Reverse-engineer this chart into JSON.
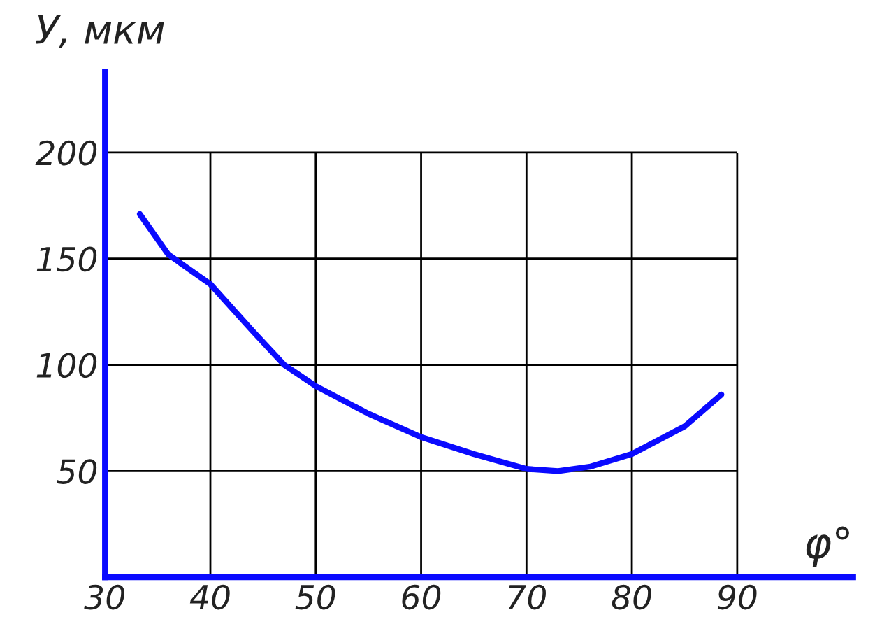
{
  "chart_data": {
    "type": "line",
    "xlabel": "φ°",
    "ylabel": "У, мкм",
    "x": [
      33.3,
      36,
      40,
      44,
      47,
      50,
      55,
      60,
      65,
      70,
      73,
      76,
      80,
      85,
      88.5
    ],
    "series": [
      {
        "color": "#0a0aff",
        "values": [
          171,
          152,
          138,
          116,
          100,
          90,
          77,
          66,
          58,
          51,
          50,
          52,
          58,
          71,
          86
        ]
      }
    ],
    "xlim": [
      30,
      101
    ],
    "ylim": [
      0,
      238
    ],
    "xticks": [
      30,
      40,
      50,
      60,
      70,
      80,
      90
    ],
    "yticks": [
      50,
      100,
      150,
      200
    ],
    "grid": true,
    "marker": "none",
    "line_style": "solid",
    "legend": false
  }
}
